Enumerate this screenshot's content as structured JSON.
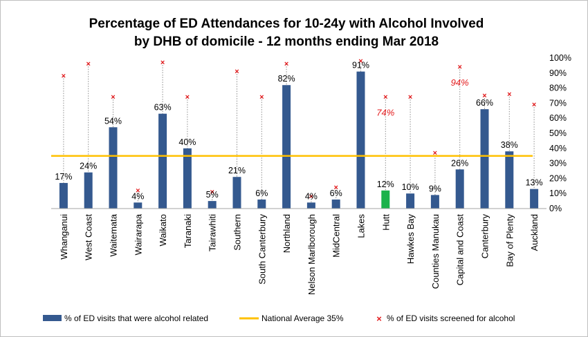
{
  "chart_data": {
    "type": "bar",
    "title_lines": [
      "Percentage of ED Attendances for 10-24y with Alcohol Involved",
      "by DHB of domicile - 12 months ending Mar 2018"
    ],
    "categories": [
      "Whanganui",
      "West Coast",
      "Waitemata",
      "Wairarapa",
      "Waikato",
      "Taranaki",
      "Tairawhiti",
      "Southern",
      "South Canterbury",
      "Northland",
      "Nelson Marlborough",
      "MidCentral",
      "Lakes",
      "Hutt",
      "Hawkes Bay",
      "Counties Manukau",
      "Capital and Coast",
      "Canterbury",
      "Bay of Plenty",
      "Auckland"
    ],
    "series": [
      {
        "name": "% of ED visits that were alcohol related",
        "values": [
          17,
          24,
          54,
          4,
          63,
          40,
          5,
          21,
          6,
          82,
          4,
          6,
          91,
          12,
          10,
          9,
          26,
          66,
          38,
          13
        ],
        "labels": [
          "17%",
          "24%",
          "54%",
          "4%",
          "63%",
          "40%",
          "5%",
          "21%",
          "6%",
          "82%",
          "4%",
          "6%",
          "91%",
          "12%",
          "10%",
          "9%",
          "26%",
          "66%",
          "38%",
          "13%"
        ],
        "color": "#34598f",
        "highlight_category": "Hutt",
        "highlight_color": "#1cb24b"
      },
      {
        "name": "% of ED visits screened for alcohol",
        "values": [
          88,
          96,
          74,
          12,
          97,
          74,
          11,
          91,
          74,
          96,
          8,
          14,
          98,
          74,
          74,
          37,
          94,
          75,
          76,
          69
        ],
        "color": "#e31a1c",
        "annotations": [
          {
            "category": "Hutt",
            "label": "74%"
          },
          {
            "category": "Capital and Coast",
            "label": "94%"
          }
        ]
      }
    ],
    "reference_line": {
      "name": "National Average 35%",
      "value": 35,
      "color": "#ffc000"
    },
    "y_axis": {
      "position": "right",
      "ylim": [
        0,
        100
      ],
      "ticks": [
        "0%",
        "10%",
        "20%",
        "30%",
        "40%",
        "50%",
        "60%",
        "70%",
        "80%",
        "90%",
        "100%"
      ]
    },
    "grid": false,
    "legend_position": "bottom"
  }
}
